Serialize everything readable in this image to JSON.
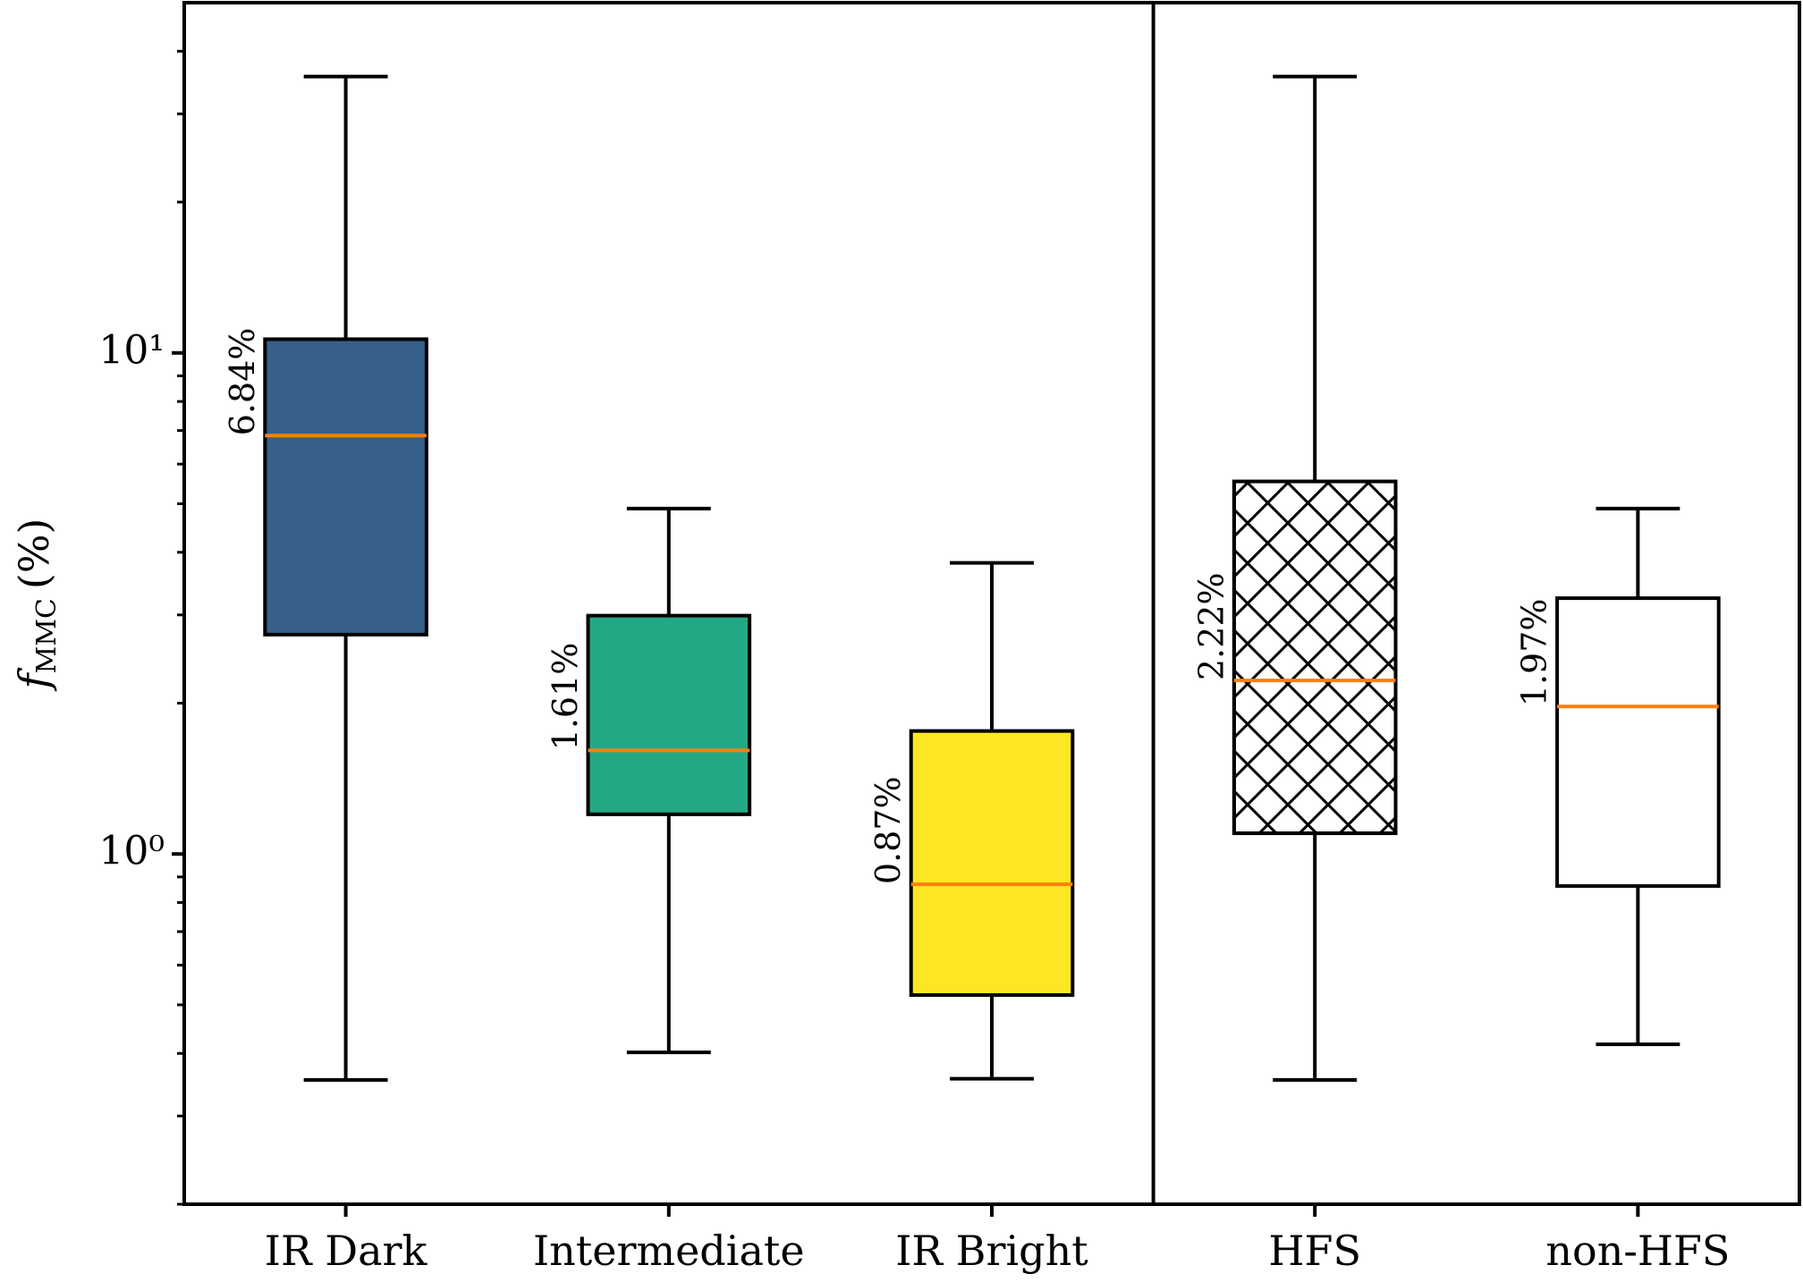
{
  "chart_data": {
    "type": "box",
    "ylabel": {
      "symbol": "f",
      "subscript": "MMC",
      "unit": "(%)"
    },
    "categories": [
      "IR Dark",
      "Intermediate",
      "IR Bright",
      "HFS",
      "non-HFS"
    ],
    "boxes": [
      {
        "color": "#365f8a",
        "hatch": false,
        "whislo": 0.354,
        "q1": 2.74,
        "median": 6.84,
        "q3": 10.65,
        "whishi": 35.6,
        "median_label": "6.84%"
      },
      {
        "color": "#22a884",
        "hatch": false,
        "whislo": 0.402,
        "q1": 1.2,
        "median": 1.61,
        "q3": 2.99,
        "whishi": 4.89,
        "median_label": "1.61%"
      },
      {
        "color": "#fde725",
        "hatch": false,
        "whislo": 0.356,
        "q1": 0.523,
        "median": 0.87,
        "q3": 1.76,
        "whishi": 3.81,
        "median_label": "0.87%"
      },
      {
        "color": "#ffffff",
        "hatch": true,
        "whislo": 0.354,
        "q1": 1.1,
        "median": 2.22,
        "q3": 5.54,
        "whishi": 35.6,
        "median_label": "2.22%"
      },
      {
        "color": "#ffffff",
        "hatch": false,
        "whislo": 0.417,
        "q1": 0.863,
        "median": 1.97,
        "q3": 3.24,
        "whishi": 4.89,
        "median_label": "1.97%"
      }
    ],
    "median_color": "#ff7f0e",
    "log_scale": true,
    "ylim": [
      0.2,
      50
    ],
    "yticks": [
      {
        "value": 1,
        "label": "10⁰"
      },
      {
        "value": 10,
        "label": "10¹"
      }
    ],
    "yminorticks": [
      0.2,
      0.3,
      0.4,
      0.5,
      0.6,
      0.7,
      0.8,
      0.9,
      2,
      3,
      4,
      5,
      6,
      7,
      8,
      9,
      20,
      30,
      40
    ],
    "divider_after": 3
  }
}
